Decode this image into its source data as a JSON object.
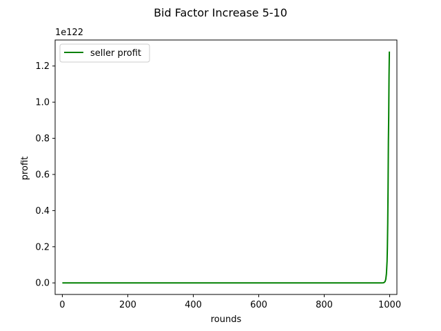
{
  "chart_data": {
    "type": "line",
    "title": "Bid Factor Increase 5-10",
    "xlabel": "rounds",
    "ylabel": "profit",
    "y_offset_label": "1e122",
    "xlim": [
      -22,
      1022
    ],
    "ylim": [
      -0.064,
      1.344
    ],
    "y_scale_exponent": 122,
    "x_ticks": [
      0,
      200,
      400,
      600,
      800,
      1000
    ],
    "x_tick_labels": [
      "0",
      "200",
      "400",
      "600",
      "800",
      "1000"
    ],
    "y_ticks": [
      0.0,
      0.2,
      0.4,
      0.6,
      0.8,
      1.0,
      1.2
    ],
    "y_tick_labels": [
      "0.0",
      "0.2",
      "0.4",
      "0.6",
      "0.8",
      "1.0",
      "1.2"
    ],
    "grid": false,
    "legend_position": "upper-left",
    "series": [
      {
        "name": "seller profit",
        "color": "#008000",
        "x": [
          0,
          100,
          200,
          300,
          400,
          500,
          600,
          700,
          800,
          900,
          950,
          975,
          980,
          983,
          986,
          988,
          990,
          992,
          993,
          994,
          995,
          996,
          997,
          998,
          999
        ],
        "y": [
          0,
          0,
          0,
          0,
          0,
          0,
          0,
          0,
          0,
          0,
          0,
          0,
          0.0005,
          0.002,
          0.008,
          0.02,
          0.05,
          0.12,
          0.2,
          0.33,
          0.52,
          0.78,
          0.92,
          1.15,
          1.28
        ]
      }
    ]
  }
}
